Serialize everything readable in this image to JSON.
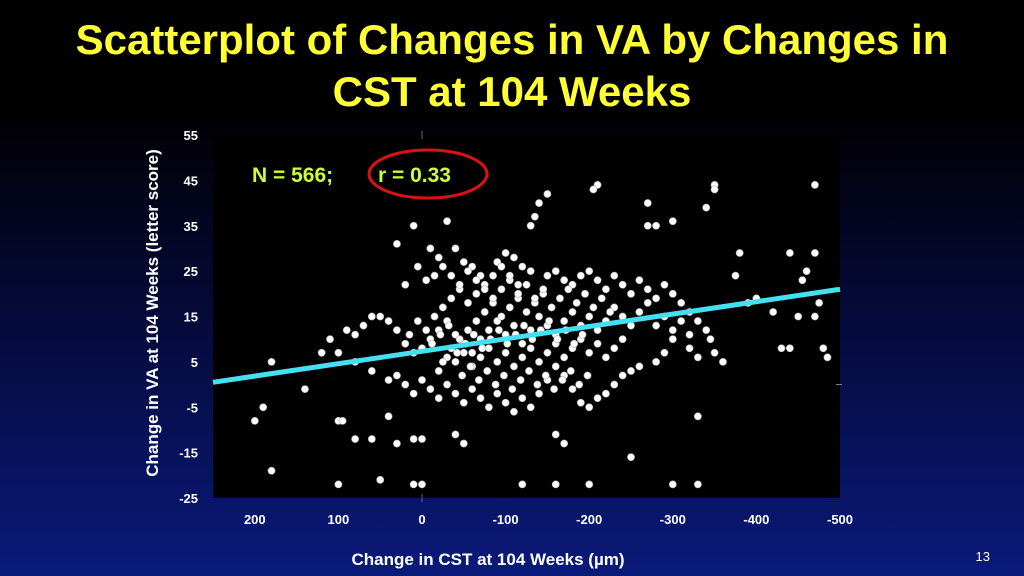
{
  "slide": {
    "title_line1": "Scatterplot of Changes in VA by Changes in",
    "title_line2": "CST at 104 Weeks",
    "page_number": "13"
  },
  "chart_data": {
    "type": "scatter",
    "xlabel": "Change in CST at 104 Weeks (µm)",
    "ylabel": "Change in VA at 104 Weeks (letter score)",
    "xlim": [
      250,
      -500
    ],
    "ylim": [
      -25,
      55
    ],
    "x_ticks": [
      "200",
      "100",
      "0",
      "-100",
      "-200",
      "-300",
      "-400",
      "-500"
    ],
    "x_tick_values": [
      200,
      100,
      0,
      -100,
      -200,
      -300,
      -400,
      -500
    ],
    "y_ticks": [
      "55",
      "45",
      "35",
      "25",
      "15",
      "5",
      "-5",
      "-15",
      "-25"
    ],
    "y_tick_values": [
      55,
      45,
      35,
      25,
      15,
      5,
      -5,
      -15,
      -25
    ],
    "annotation": {
      "n_text": "N = 566;",
      "r_text": "r = 0.33",
      "highlight": "red-circle-around-r"
    },
    "regression_line": {
      "x": [
        250,
        -500
      ],
      "y": [
        0.5,
        21
      ],
      "color": "#44e0f0"
    },
    "colors": {
      "title": "#ffff33",
      "annotation": "#ccff33",
      "points": "#ffffff",
      "plot_background": "#000000",
      "circle": "#dd1111"
    },
    "series": [
      {
        "points": [
          [
            -350,
            44
          ],
          [
            -470,
            44
          ],
          [
            -210,
            44
          ],
          [
            -205,
            43
          ],
          [
            -150,
            42
          ],
          [
            -140,
            40
          ],
          [
            -270,
            40
          ],
          [
            -135,
            37
          ],
          [
            -130,
            35
          ],
          [
            -270,
            35
          ],
          [
            -280,
            35
          ],
          [
            -300,
            36
          ],
          [
            -340,
            39
          ],
          [
            -350,
            43
          ],
          [
            -470,
            29
          ],
          [
            -440,
            29
          ],
          [
            -460,
            25
          ],
          [
            -455,
            23
          ],
          [
            -380,
            29
          ],
          [
            -375,
            24
          ],
          [
            -390,
            18
          ],
          [
            -400,
            19
          ],
          [
            -420,
            16
          ],
          [
            -430,
            8
          ],
          [
            -440,
            8
          ],
          [
            -450,
            15
          ],
          [
            -470,
            15
          ],
          [
            -475,
            18
          ],
          [
            -480,
            8
          ],
          [
            -485,
            6
          ],
          [
            -30,
            36
          ],
          [
            -10,
            30
          ],
          [
            -20,
            28
          ],
          [
            -40,
            30
          ],
          [
            -50,
            27
          ],
          [
            -60,
            26
          ],
          [
            -70,
            24
          ],
          [
            -90,
            27
          ],
          [
            -100,
            29
          ],
          [
            -110,
            28
          ],
          [
            -120,
            26
          ],
          [
            -130,
            25
          ],
          [
            -150,
            24
          ],
          [
            -160,
            25
          ],
          [
            -170,
            23
          ],
          [
            -180,
            22
          ],
          [
            -190,
            24
          ],
          [
            -200,
            25
          ],
          [
            -210,
            23
          ],
          [
            -220,
            21
          ],
          [
            -230,
            24
          ],
          [
            -240,
            22
          ],
          [
            -250,
            20
          ],
          [
            -260,
            23
          ],
          [
            -270,
            21
          ],
          [
            -280,
            19
          ],
          [
            -290,
            22
          ],
          [
            -300,
            20
          ],
          [
            -310,
            18
          ],
          [
            -320,
            16
          ],
          [
            -330,
            14
          ],
          [
            -340,
            12
          ],
          [
            -345,
            10
          ],
          [
            -360,
            5
          ],
          [
            -350,
            7
          ],
          [
            -330,
            6
          ],
          [
            -320,
            8
          ],
          [
            -300,
            10
          ],
          [
            -290,
            7
          ],
          [
            -280,
            5
          ],
          [
            -260,
            4
          ],
          [
            -250,
            3
          ],
          [
            -240,
            2
          ],
          [
            -230,
            0
          ],
          [
            -220,
            -2
          ],
          [
            -210,
            -3
          ],
          [
            -200,
            -5
          ],
          [
            -190,
            -4
          ],
          [
            -180,
            -1
          ],
          [
            -170,
            2
          ],
          [
            -160,
            4
          ],
          [
            -150,
            1
          ],
          [
            -140,
            -2
          ],
          [
            -130,
            -5
          ],
          [
            -120,
            -3
          ],
          [
            -110,
            -6
          ],
          [
            -100,
            -4
          ],
          [
            -90,
            -2
          ],
          [
            -80,
            -5
          ],
          [
            -70,
            -3
          ],
          [
            -60,
            -1
          ],
          [
            -50,
            -4
          ],
          [
            -40,
            -2
          ],
          [
            -30,
            0
          ],
          [
            -20,
            -3
          ],
          [
            -10,
            -1
          ],
          [
            0,
            1
          ],
          [
            10,
            -2
          ],
          [
            20,
            0
          ],
          [
            30,
            2
          ],
          [
            40,
            1
          ],
          [
            60,
            3
          ],
          [
            80,
            5
          ],
          [
            100,
            7
          ],
          [
            110,
            10
          ],
          [
            90,
            12
          ],
          [
            70,
            13
          ],
          [
            50,
            15
          ],
          [
            30,
            12
          ],
          [
            20,
            9
          ],
          [
            10,
            7
          ],
          [
            0,
            8
          ],
          [
            -10,
            10
          ],
          [
            -20,
            12
          ],
          [
            -30,
            14
          ],
          [
            -40,
            11
          ],
          [
            -50,
            9
          ],
          [
            -60,
            7
          ],
          [
            -70,
            10
          ],
          [
            -80,
            12
          ],
          [
            -90,
            14
          ],
          [
            -100,
            11
          ],
          [
            -110,
            13
          ],
          [
            -120,
            9
          ],
          [
            -130,
            12
          ],
          [
            -140,
            15
          ],
          [
            -150,
            13
          ],
          [
            -160,
            11
          ],
          [
            -170,
            14
          ],
          [
            -180,
            16
          ],
          [
            -190,
            13
          ],
          [
            -200,
            15
          ],
          [
            -210,
            12
          ],
          [
            -220,
            14
          ],
          [
            -230,
            17
          ],
          [
            -240,
            15
          ],
          [
            -250,
            13
          ],
          [
            -260,
            16
          ],
          [
            -270,
            18
          ],
          [
            -280,
            13
          ],
          [
            -290,
            15
          ],
          [
            -300,
            12
          ],
          [
            -310,
            14
          ],
          [
            -320,
            11
          ],
          [
            -30,
            6
          ],
          [
            -40,
            5
          ],
          [
            -50,
            7
          ],
          [
            -60,
            4
          ],
          [
            -70,
            6
          ],
          [
            -80,
            8
          ],
          [
            -90,
            5
          ],
          [
            -100,
            7
          ],
          [
            -110,
            4
          ],
          [
            -120,
            6
          ],
          [
            -130,
            8
          ],
          [
            -140,
            5
          ],
          [
            -150,
            7
          ],
          [
            -160,
            9
          ],
          [
            -170,
            6
          ],
          [
            -180,
            8
          ],
          [
            -190,
            10
          ],
          [
            -200,
            7
          ],
          [
            -210,
            9
          ],
          [
            -220,
            6
          ],
          [
            -230,
            8
          ],
          [
            -240,
            10
          ],
          [
            -20,
            3
          ],
          [
            -25,
            5
          ],
          [
            -35,
            8
          ],
          [
            -45,
            10
          ],
          [
            -55,
            12
          ],
          [
            -65,
            14
          ],
          [
            -75,
            16
          ],
          [
            -85,
            18
          ],
          [
            -95,
            15
          ],
          [
            -105,
            17
          ],
          [
            -115,
            19
          ],
          [
            -125,
            16
          ],
          [
            -135,
            18
          ],
          [
            -145,
            20
          ],
          [
            -155,
            17
          ],
          [
            -165,
            19
          ],
          [
            -175,
            21
          ],
          [
            -185,
            18
          ],
          [
            -195,
            20
          ],
          [
            -205,
            17
          ],
          [
            -215,
            19
          ],
          [
            -225,
            16
          ],
          [
            -15,
            15
          ],
          [
            -25,
            17
          ],
          [
            -35,
            19
          ],
          [
            -45,
            21
          ],
          [
            -55,
            18
          ],
          [
            -65,
            20
          ],
          [
            -75,
            22
          ],
          [
            -85,
            19
          ],
          [
            -95,
            21
          ],
          [
            -105,
            23
          ],
          [
            -115,
            20
          ],
          [
            -125,
            22
          ],
          [
            -135,
            19
          ],
          [
            -145,
            21
          ],
          [
            -5,
            12
          ],
          [
            5,
            14
          ],
          [
            15,
            11
          ],
          [
            -12,
            9
          ],
          [
            -22,
            11
          ],
          [
            -32,
            13
          ],
          [
            -42,
            7
          ],
          [
            -52,
            9
          ],
          [
            -62,
            11
          ],
          [
            -72,
            8
          ],
          [
            -82,
            10
          ],
          [
            -92,
            12
          ],
          [
            -102,
            9
          ],
          [
            -112,
            11
          ],
          [
            -122,
            13
          ],
          [
            -132,
            10
          ],
          [
            -142,
            12
          ],
          [
            -152,
            14
          ],
          [
            -162,
            10
          ],
          [
            -172,
            12
          ],
          [
            -182,
            9
          ],
          [
            -192,
            11
          ],
          [
            -48,
            2
          ],
          [
            -58,
            4
          ],
          [
            -68,
            1
          ],
          [
            -78,
            3
          ],
          [
            -88,
            0
          ],
          [
            -98,
            2
          ],
          [
            -108,
            -1
          ],
          [
            -118,
            1
          ],
          [
            -128,
            3
          ],
          [
            -138,
            0
          ],
          [
            -148,
            2
          ],
          [
            -158,
            -1
          ],
          [
            -168,
            1
          ],
          [
            -178,
            3
          ],
          [
            -188,
            0
          ],
          [
            -198,
            2
          ],
          [
            200,
            -8
          ],
          [
            190,
            -5
          ],
          [
            180,
            -19
          ],
          [
            100,
            -8
          ],
          [
            95,
            -8
          ],
          [
            80,
            -12
          ],
          [
            60,
            -12
          ],
          [
            40,
            -7
          ],
          [
            30,
            -13
          ],
          [
            10,
            -12
          ],
          [
            0,
            -12
          ],
          [
            -40,
            -11
          ],
          [
            -50,
            -13
          ],
          [
            -160,
            -11
          ],
          [
            -170,
            -13
          ],
          [
            -250,
            -16
          ],
          [
            -330,
            -7
          ],
          [
            50,
            -21
          ],
          [
            100,
            -22
          ],
          [
            10,
            -22
          ],
          [
            0,
            -22
          ],
          [
            -160,
            -22
          ],
          [
            -200,
            -22
          ],
          [
            -300,
            -22
          ],
          [
            -330,
            -22
          ],
          [
            -120,
            -22
          ],
          [
            140,
            -1
          ],
          [
            180,
            5
          ],
          [
            120,
            7
          ],
          [
            80,
            11
          ],
          [
            60,
            15
          ],
          [
            40,
            14
          ],
          [
            20,
            22
          ],
          [
            30,
            31
          ],
          [
            10,
            35
          ],
          [
            5,
            26
          ],
          [
            -5,
            23
          ],
          [
            -15,
            24
          ],
          [
            -25,
            26
          ],
          [
            -35,
            24
          ],
          [
            -45,
            22
          ],
          [
            -55,
            25
          ],
          [
            -65,
            23
          ],
          [
            -75,
            21
          ],
          [
            -85,
            24
          ],
          [
            -95,
            26
          ],
          [
            -105,
            24
          ],
          [
            -115,
            22
          ]
        ]
      }
    ]
  }
}
